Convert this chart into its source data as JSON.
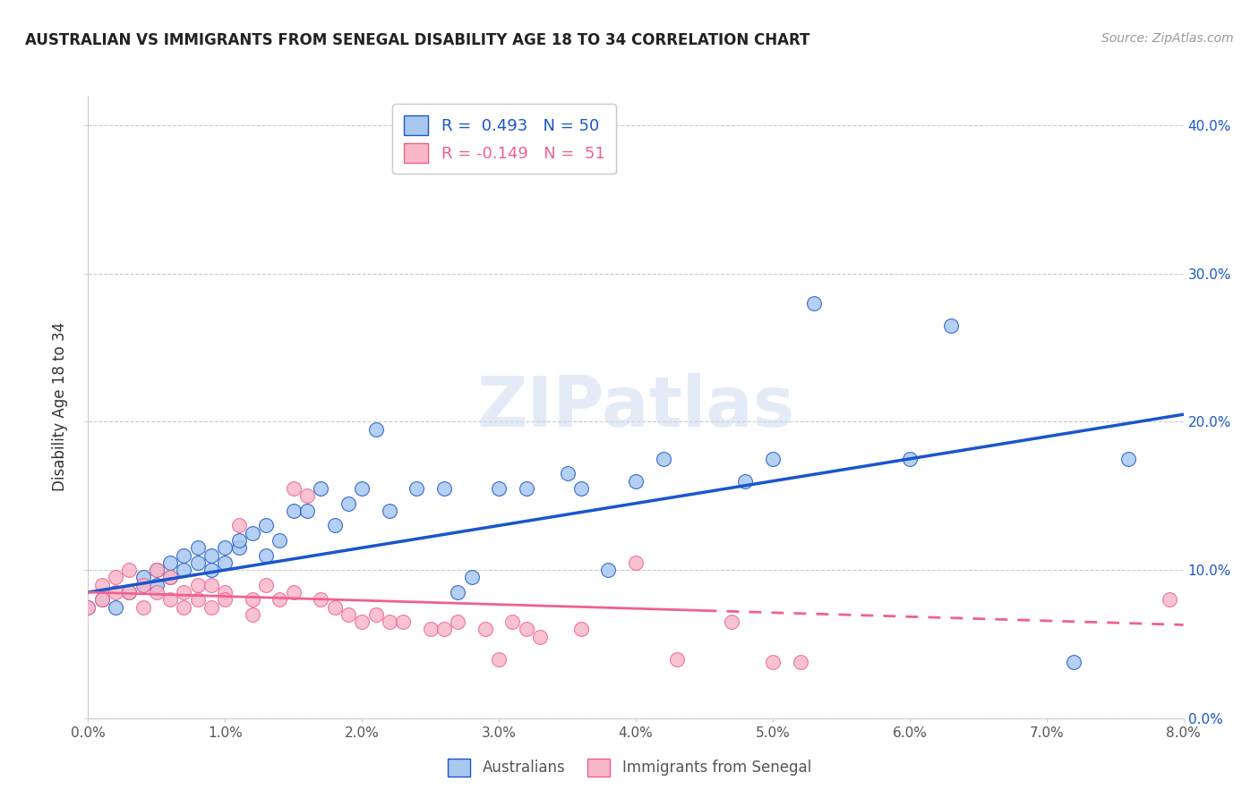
{
  "title": "AUSTRALIAN VS IMMIGRANTS FROM SENEGAL DISABILITY AGE 18 TO 34 CORRELATION CHART",
  "source": "Source: ZipAtlas.com",
  "ylabel": "Disability Age 18 to 34",
  "xlim": [
    0.0,
    0.08
  ],
  "ylim": [
    0.0,
    0.42
  ],
  "xticks": [
    0.0,
    0.01,
    0.02,
    0.03,
    0.04,
    0.05,
    0.06,
    0.07,
    0.08
  ],
  "yticks": [
    0.0,
    0.1,
    0.2,
    0.3,
    0.4
  ],
  "watermark": "ZIPatlas",
  "legend_blue_label": "R =  0.493   N = 50",
  "legend_pink_label": "R = -0.149   N =  51",
  "blue_color": "#A8C8F0",
  "pink_color": "#F8B8C8",
  "blue_line_color": "#1A56CC",
  "pink_line_color": "#F06090",
  "australians_label": "Australians",
  "senegal_label": "Immigrants from Senegal",
  "blue_x": [
    0.0,
    0.001,
    0.002,
    0.003,
    0.004,
    0.004,
    0.005,
    0.005,
    0.006,
    0.006,
    0.007,
    0.007,
    0.008,
    0.008,
    0.009,
    0.009,
    0.01,
    0.01,
    0.011,
    0.011,
    0.012,
    0.013,
    0.013,
    0.014,
    0.015,
    0.016,
    0.017,
    0.018,
    0.019,
    0.02,
    0.021,
    0.022,
    0.024,
    0.026,
    0.027,
    0.028,
    0.03,
    0.032,
    0.035,
    0.036,
    0.038,
    0.04,
    0.042,
    0.048,
    0.05,
    0.053,
    0.06,
    0.063,
    0.072,
    0.076
  ],
  "blue_y": [
    0.075,
    0.08,
    0.075,
    0.085,
    0.09,
    0.095,
    0.09,
    0.1,
    0.095,
    0.105,
    0.1,
    0.11,
    0.105,
    0.115,
    0.1,
    0.11,
    0.105,
    0.115,
    0.115,
    0.12,
    0.125,
    0.11,
    0.13,
    0.12,
    0.14,
    0.14,
    0.155,
    0.13,
    0.145,
    0.155,
    0.195,
    0.14,
    0.155,
    0.155,
    0.085,
    0.095,
    0.155,
    0.155,
    0.165,
    0.155,
    0.1,
    0.16,
    0.175,
    0.16,
    0.175,
    0.28,
    0.175,
    0.265,
    0.038,
    0.175
  ],
  "pink_x": [
    0.0,
    0.001,
    0.001,
    0.002,
    0.002,
    0.003,
    0.003,
    0.004,
    0.004,
    0.005,
    0.005,
    0.006,
    0.006,
    0.007,
    0.007,
    0.008,
    0.008,
    0.009,
    0.009,
    0.01,
    0.01,
    0.011,
    0.012,
    0.012,
    0.013,
    0.014,
    0.015,
    0.015,
    0.016,
    0.017,
    0.018,
    0.019,
    0.02,
    0.021,
    0.022,
    0.023,
    0.025,
    0.026,
    0.027,
    0.029,
    0.03,
    0.031,
    0.032,
    0.033,
    0.036,
    0.04,
    0.043,
    0.047,
    0.05,
    0.052,
    0.079
  ],
  "pink_y": [
    0.075,
    0.09,
    0.08,
    0.085,
    0.095,
    0.085,
    0.1,
    0.075,
    0.09,
    0.1,
    0.085,
    0.095,
    0.08,
    0.085,
    0.075,
    0.09,
    0.08,
    0.09,
    0.075,
    0.085,
    0.08,
    0.13,
    0.07,
    0.08,
    0.09,
    0.08,
    0.085,
    0.155,
    0.15,
    0.08,
    0.075,
    0.07,
    0.065,
    0.07,
    0.065,
    0.065,
    0.06,
    0.06,
    0.065,
    0.06,
    0.04,
    0.065,
    0.06,
    0.055,
    0.06,
    0.105,
    0.04,
    0.065,
    0.038,
    0.038,
    0.08
  ],
  "blue_trend_x0": 0.0,
  "blue_trend_x1": 0.08,
  "blue_trend_y0": 0.085,
  "blue_trend_y1": 0.205,
  "pink_trend_x0": 0.0,
  "pink_trend_x1": 0.08,
  "pink_trend_y0": 0.085,
  "pink_trend_y1": 0.063
}
